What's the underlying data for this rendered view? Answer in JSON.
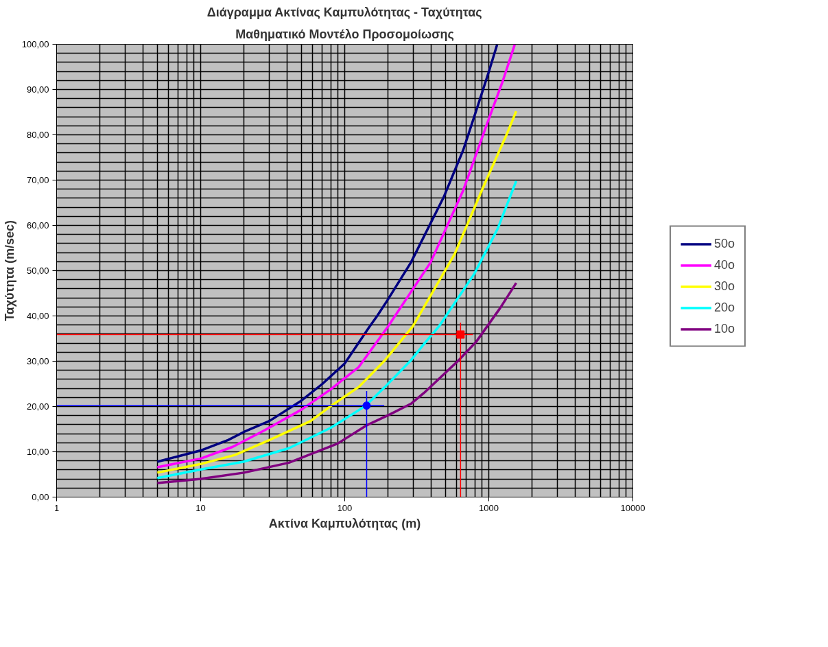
{
  "chart_data": {
    "type": "line",
    "title": "Διάγραμμα Ακτίνας Καμπυλότητας - Ταχύτητας",
    "subtitle": "Μαθηματικό Μοντέλο Προσομοίωσης",
    "xlabel": "Ακτίνα Καμπυλότητας (m)",
    "ylabel": "Ταχύτητα (m/sec)",
    "log": "x",
    "grid": true,
    "legend": "right",
    "xlim": [
      1,
      10000
    ],
    "xticks": [
      1,
      10,
      100,
      1000,
      10000
    ],
    "ylim": [
      0,
      100
    ],
    "yticks": [
      {
        "value": 0,
        "label": "0,00"
      },
      {
        "value": 10,
        "label": "10,00"
      },
      {
        "value": 20,
        "label": "20,00"
      },
      {
        "value": 30,
        "label": "30,00"
      },
      {
        "value": 40,
        "label": "40,00"
      },
      {
        "value": 50,
        "label": "50,00"
      },
      {
        "value": 60,
        "label": "60,00"
      },
      {
        "value": 70,
        "label": "70,00"
      },
      {
        "value": 80,
        "label": "80,00"
      },
      {
        "value": 90,
        "label": "90,00"
      },
      {
        "value": 100,
        "label": "100,00"
      }
    ],
    "series": [
      {
        "name": "50o",
        "color": "#000080",
        "x": [
          5,
          10,
          15.5,
          20,
          30,
          50,
          70,
          100,
          149,
          168,
          200,
          288,
          486,
          664,
          845,
          1007,
          1142
        ],
        "values": [
          7.8,
          10.3,
          12.6,
          14.4,
          16.8,
          21.3,
          25,
          29.5,
          37.7,
          40,
          43.7,
          51.8,
          66.2,
          76.6,
          86.7,
          94.2,
          99.9
        ]
      },
      {
        "name": "40o",
        "color": "#ff00ff",
        "x": [
          5,
          10,
          16.7,
          28,
          50,
          80,
          125,
          200,
          394,
          664,
          977,
          1242,
          1514
        ],
        "values": [
          6.6,
          8.5,
          11.1,
          14.8,
          19.3,
          23.8,
          28.7,
          37.7,
          51.8,
          67.7,
          82.6,
          91.6,
          99.9
        ]
      },
      {
        "name": "30o",
        "color": "#ffff00",
        "x": [
          5,
          10,
          17.3,
          30,
          58,
          80,
          125,
          190,
          297,
          580,
          937,
          1336,
          1550
        ],
        "values": [
          5.4,
          7.3,
          9.3,
          12.6,
          16.8,
          20.1,
          24.3,
          30.2,
          37.7,
          53.7,
          69.2,
          80.2,
          85.2
        ]
      },
      {
        "name": "20o",
        "color": "#00ffff",
        "x": [
          5,
          10,
          19.8,
          41,
          80,
          139,
          190,
          288,
          355,
          451,
          793,
          1154,
          1550
        ],
        "values": [
          4.2,
          6.1,
          7.8,
          10.8,
          15.3,
          20.1,
          24.3,
          30.2,
          33.8,
          37.7,
          49.3,
          59.3,
          69.8
        ]
      },
      {
        "name": "10o",
        "color": "#800080",
        "x": [
          5,
          10,
          20,
          41,
          89,
          143,
          204,
          288,
          355,
          617,
          818,
          1203,
          1550
        ],
        "values": [
          3.1,
          4.0,
          5.4,
          7.6,
          11.8,
          15.9,
          18.2,
          20.6,
          23,
          30.2,
          34.3,
          41.8,
          47.3
        ]
      },
      {
        "type": "scatter",
        "marker": "circle",
        "color": "#0000ff",
        "x": [
          142
        ],
        "values": [
          20.2
        ],
        "errors": [
          [
            0,
            23.4
          ]
        ],
        "xerrors": [
          [
            1,
            188
          ]
        ]
      },
      {
        "type": "scatter",
        "marker": "square",
        "color": "#ff0000",
        "x": [
          637
        ],
        "values": [
          35.9
        ],
        "errors": [
          [
            0,
            38.5
          ]
        ],
        "xerrors": [
          [
            1,
            777
          ]
        ]
      }
    ]
  }
}
